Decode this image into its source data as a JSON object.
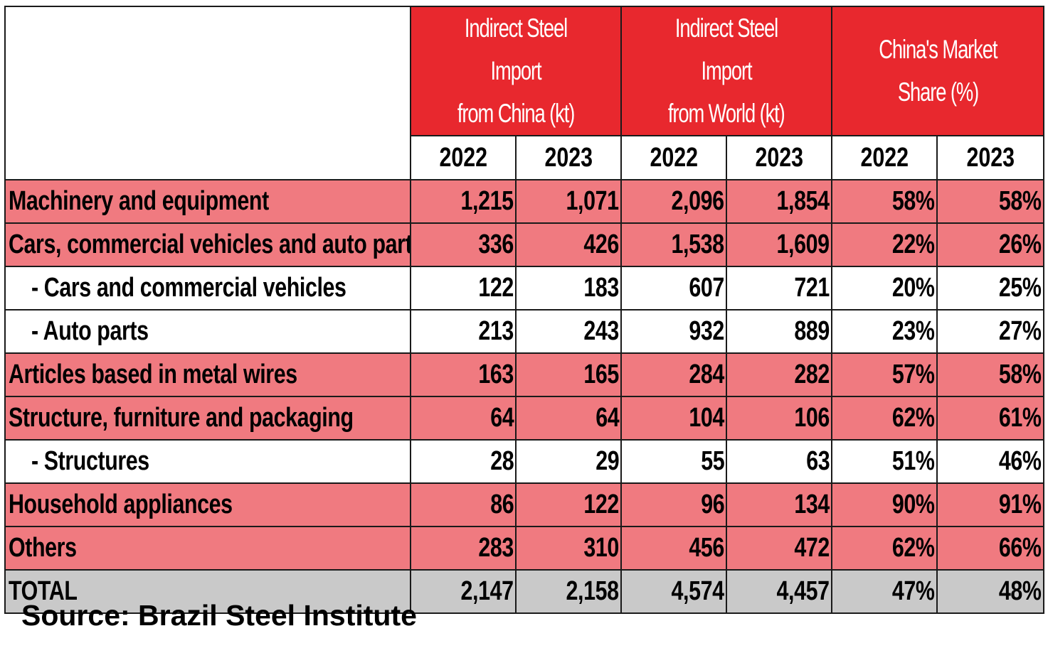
{
  "chart_data": {
    "type": "table",
    "column_groups": [
      "Indirect Steel Import from China (kt)",
      "Indirect Steel Import from World (kt)",
      "China's Market Share (%)"
    ],
    "group_lines": [
      [
        "Indirect Steel Import",
        "from China (kt)"
      ],
      [
        "Indirect Steel Import",
        "from World (kt)"
      ],
      [
        "China's Market",
        "Share (%)"
      ]
    ],
    "years": [
      "2022",
      "2023",
      "2022",
      "2023",
      "2022",
      "2023"
    ],
    "rows": [
      {
        "label": "Machinery and equipment",
        "style": "pink",
        "sub": false,
        "values": [
          "1,215",
          "1,071",
          "2,096",
          "1,854",
          "58%",
          "58%"
        ]
      },
      {
        "label": "Cars, commercial vehicles and auto parts",
        "style": "pink",
        "sub": false,
        "values": [
          "336",
          "426",
          "1,538",
          "1,609",
          "22%",
          "26%"
        ]
      },
      {
        "label": "- Cars and commercial vehicles",
        "style": "white",
        "sub": true,
        "values": [
          "122",
          "183",
          "607",
          "721",
          "20%",
          "25%"
        ]
      },
      {
        "label": "- Auto parts",
        "style": "white",
        "sub": true,
        "values": [
          "213",
          "243",
          "932",
          "889",
          "23%",
          "27%"
        ]
      },
      {
        "label": "Articles based in metal wires",
        "style": "pink",
        "sub": false,
        "values": [
          "163",
          "165",
          "284",
          "282",
          "57%",
          "58%"
        ]
      },
      {
        "label": "Structure, furniture and packaging",
        "style": "pink",
        "sub": false,
        "values": [
          "64",
          "64",
          "104",
          "106",
          "62%",
          "61%"
        ]
      },
      {
        "label": "- Structures",
        "style": "white",
        "sub": true,
        "values": [
          "28",
          "29",
          "55",
          "63",
          "51%",
          "46%"
        ]
      },
      {
        "label": "Household appliances",
        "style": "pink",
        "sub": false,
        "values": [
          "86",
          "122",
          "96",
          "134",
          "90%",
          "91%"
        ]
      },
      {
        "label": "Others",
        "style": "pink",
        "sub": false,
        "values": [
          "283",
          "310",
          "456",
          "472",
          "62%",
          "66%"
        ]
      },
      {
        "label": "TOTAL",
        "style": "total",
        "sub": false,
        "values": [
          "2,147",
          "2,158",
          "4,574",
          "4,457",
          "47%",
          "48%"
        ]
      }
    ],
    "source": "Source: Brazil Steel Institute"
  },
  "colors": {
    "header_red": "#e8282e",
    "row_pink": "#f07a80",
    "total_grey": "#c9c9c9"
  }
}
